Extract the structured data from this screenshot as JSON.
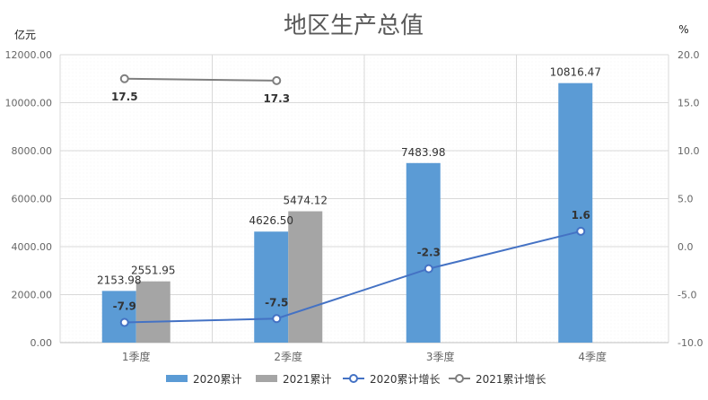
{
  "chart_data": {
    "type": "bar",
    "title": "地区生产总值",
    "ylabel_left": "亿元",
    "ylabel_right": "%",
    "categories": [
      "1季度",
      "2季度",
      "3季度",
      "4季度"
    ],
    "y_left": {
      "ylim": [
        0,
        12000
      ],
      "ticks": [
        0,
        2000,
        4000,
        6000,
        8000,
        10000,
        12000
      ],
      "tick_labels": [
        "0.00",
        "2000.00",
        "4000.00",
        "6000.00",
        "8000.00",
        "10000.00",
        "12000.00"
      ]
    },
    "y_right": {
      "ylim": [
        -10,
        20
      ],
      "ticks": [
        -10,
        -5,
        0,
        5,
        10,
        15,
        20
      ],
      "tick_labels": [
        "-10.0",
        "-5.0",
        "0.0",
        "5.0",
        "10.0",
        "15.0",
        "20.0"
      ]
    },
    "grid": true,
    "legend_position": "bottom",
    "series": [
      {
        "name": "2020累计",
        "type": "bar",
        "axis": "left",
        "color": "#5B9BD5",
        "values": [
          2153.98,
          4626.5,
          7483.98,
          10816.47
        ],
        "labels": [
          "2153.98",
          "4626.50",
          "7483.98",
          "10816.47"
        ]
      },
      {
        "name": "2021累计",
        "type": "bar",
        "axis": "left",
        "color": "#A5A5A5",
        "values": [
          2551.95,
          5474.12,
          null,
          null
        ],
        "labels": [
          "2551.95",
          "5474.12",
          "",
          ""
        ]
      },
      {
        "name": "2020累计增长",
        "type": "line",
        "axis": "right",
        "color": "#4472C4",
        "values": [
          -7.9,
          -7.5,
          -2.3,
          1.6
        ],
        "labels": [
          "-7.9",
          "-7.5",
          "-2.3",
          "1.6"
        ]
      },
      {
        "name": "2021累计增长",
        "type": "line",
        "axis": "right",
        "color": "#7F7F7F",
        "values": [
          17.5,
          17.3,
          null,
          null
        ],
        "labels": [
          "17.5",
          "17.3",
          "",
          ""
        ]
      }
    ]
  }
}
